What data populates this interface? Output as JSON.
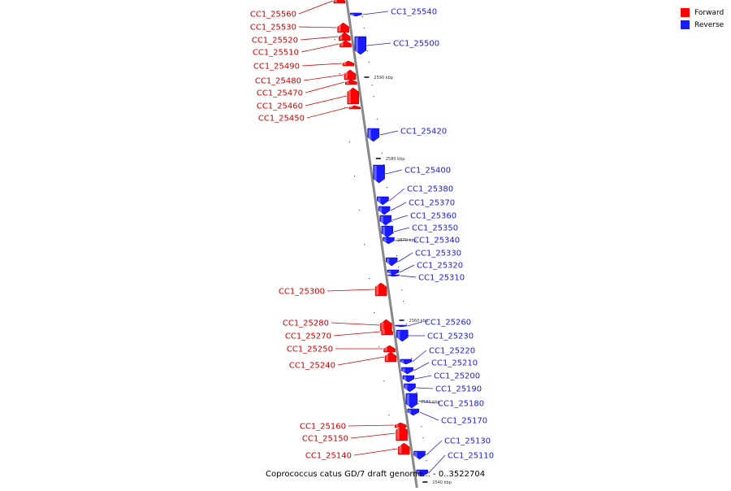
{
  "legend": {
    "forward_label": "Forward",
    "reverse_label": "Reverse",
    "forward_color": "#ff0000",
    "reverse_color": "#1a1aff"
  },
  "colors": {
    "forward_label_text": "#cc0000",
    "reverse_label_text": "#2020cc",
    "axis": "#888888"
  },
  "caption": "Coprococcus catus GD/7 draft genome... - 0..3522704",
  "ticks": [
    "2590 kbp",
    "2580 kbp",
    "2570 kbp",
    "2560 kbp",
    "2550 kbp",
    "2540 kbp"
  ],
  "forward_genes": [
    "CC1_25560",
    "CC1_25530",
    "CC1_25520",
    "CC1_25510",
    "CC1_25490",
    "CC1_25480",
    "CC1_25470",
    "CC1_25460",
    "CC1_25450",
    "CC1_25300",
    "CC1_25280",
    "CC1_25270",
    "CC1_25250",
    "CC1_25240",
    "CC1_25160",
    "CC1_25150",
    "CC1_25140"
  ],
  "reverse_genes": [
    "CC1_25540",
    "CC1_25500",
    "CC1_25420",
    "CC1_25400",
    "CC1_25380",
    "CC1_25370",
    "CC1_25360",
    "CC1_25350",
    "CC1_25340",
    "CC1_25330",
    "CC1_25320",
    "CC1_25310",
    "CC1_25260",
    "CC1_25230",
    "CC1_25220",
    "CC1_25210",
    "CC1_25200",
    "CC1_25190",
    "CC1_25180",
    "CC1_25170",
    "CC1_25130",
    "CC1_25110"
  ]
}
